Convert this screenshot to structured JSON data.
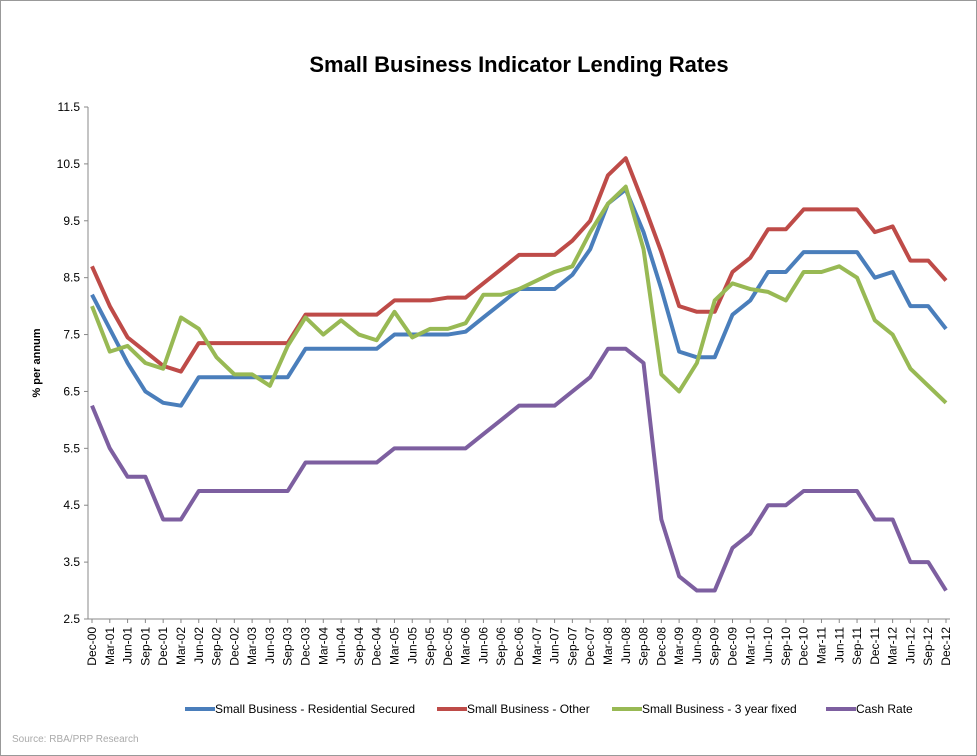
{
  "chart_data": {
    "type": "line",
    "title": "Small Business Indicator Lending Rates",
    "y_label": "% per annum",
    "source": "Source: RBA/PRP Research",
    "categories": [
      "Dec-00",
      "Mar-01",
      "Jun-01",
      "Sep-01",
      "Dec-01",
      "Mar-02",
      "Jun-02",
      "Sep-02",
      "Dec-02",
      "Mar-03",
      "Jun-03",
      "Sep-03",
      "Dec-03",
      "Mar-04",
      "Jun-04",
      "Sep-04",
      "Dec-04",
      "Mar-05",
      "Jun-05",
      "Sep-05",
      "Dec-05",
      "Mar-06",
      "Jun-06",
      "Sep-06",
      "Dec-06",
      "Mar-07",
      "Jun-07",
      "Sep-07",
      "Dec-07",
      "Mar-08",
      "Jun-08",
      "Sep-08",
      "Dec-08",
      "Mar-09",
      "Jun-09",
      "Sep-09",
      "Dec-09",
      "Mar-10",
      "Jun-10",
      "Sep-10",
      "Dec-10",
      "Mar-11",
      "Jun-11",
      "Sep-11",
      "Dec-11",
      "Mar-12",
      "Jun-12",
      "Sep-12",
      "Dec-12"
    ],
    "series": [
      {
        "name": "Small Business - Residential Secured",
        "color": "#4a7ebb",
        "values": [
          8.2,
          7.6,
          7.0,
          6.5,
          6.3,
          6.25,
          6.75,
          6.75,
          6.75,
          6.75,
          6.75,
          6.75,
          7.25,
          7.25,
          7.25,
          7.25,
          7.25,
          7.5,
          7.5,
          7.5,
          7.5,
          7.55,
          7.8,
          8.05,
          8.3,
          8.3,
          8.3,
          8.55,
          9.0,
          9.8,
          10.05,
          9.3,
          8.3,
          7.2,
          7.1,
          7.1,
          7.85,
          8.1,
          8.6,
          8.6,
          8.95,
          8.95,
          8.95,
          8.95,
          8.5,
          8.6,
          8.0,
          8.0,
          7.6
        ]
      },
      {
        "name": "Small Business - Other",
        "color": "#be4b48",
        "values": [
          8.7,
          8.0,
          7.45,
          7.2,
          6.95,
          6.85,
          7.35,
          7.35,
          7.35,
          7.35,
          7.35,
          7.35,
          7.85,
          7.85,
          7.85,
          7.85,
          7.85,
          8.1,
          8.1,
          8.1,
          8.15,
          8.15,
          8.4,
          8.65,
          8.9,
          8.9,
          8.9,
          9.15,
          9.5,
          10.3,
          10.6,
          9.8,
          8.95,
          8.0,
          7.9,
          7.9,
          8.6,
          8.85,
          9.35,
          9.35,
          9.7,
          9.7,
          9.7,
          9.7,
          9.3,
          9.4,
          8.8,
          8.8,
          8.45
        ]
      },
      {
        "name": "Small Business - 3 year fixed",
        "color": "#98b954",
        "values": [
          8.0,
          7.2,
          7.3,
          7.0,
          6.9,
          7.8,
          7.6,
          7.1,
          6.8,
          6.8,
          6.6,
          7.3,
          7.8,
          7.5,
          7.75,
          7.5,
          7.4,
          7.9,
          7.45,
          7.6,
          7.6,
          7.7,
          8.2,
          8.2,
          8.3,
          8.45,
          8.6,
          8.7,
          9.3,
          9.8,
          10.1,
          9.0,
          6.8,
          6.5,
          7.0,
          8.1,
          8.4,
          8.3,
          8.25,
          8.1,
          8.6,
          8.6,
          8.7,
          8.5,
          7.75,
          7.5,
          6.9,
          6.6,
          6.3
        ]
      },
      {
        "name": "Cash Rate",
        "color": "#7d5fa0",
        "values": [
          6.25,
          5.5,
          5.0,
          5.0,
          4.25,
          4.25,
          4.75,
          4.75,
          4.75,
          4.75,
          4.75,
          4.75,
          5.25,
          5.25,
          5.25,
          5.25,
          5.25,
          5.5,
          5.5,
          5.5,
          5.5,
          5.5,
          5.75,
          6.0,
          6.25,
          6.25,
          6.25,
          6.5,
          6.75,
          7.25,
          7.25,
          7.0,
          4.25,
          3.25,
          3.0,
          3.0,
          3.75,
          4.0,
          4.5,
          4.5,
          4.75,
          4.75,
          4.75,
          4.75,
          4.25,
          4.25,
          3.5,
          3.5,
          3.0
        ]
      }
    ],
    "ylim": [
      2.5,
      11.5
    ],
    "yticks": [
      2.5,
      3.5,
      4.5,
      5.5,
      6.5,
      7.5,
      8.5,
      9.5,
      10.5,
      11.5
    ],
    "grid": false,
    "legend": "bottom"
  }
}
